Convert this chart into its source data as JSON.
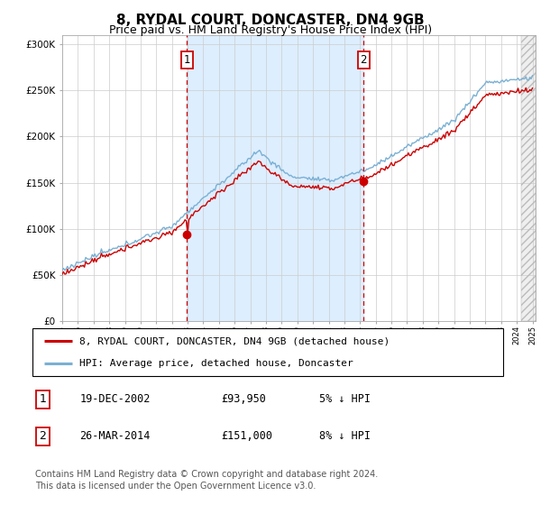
{
  "title": "8, RYDAL COURT, DONCASTER, DN4 9GB",
  "subtitle": "Price paid vs. HM Land Registry's House Price Index (HPI)",
  "ylim": [
    0,
    310000
  ],
  "yticks": [
    0,
    50000,
    100000,
    150000,
    200000,
    250000,
    300000
  ],
  "ytick_labels": [
    "£0",
    "£50K",
    "£100K",
    "£150K",
    "£200K",
    "£250K",
    "£300K"
  ],
  "sale1_year": 2002.96,
  "sale1_price": 93950,
  "sale2_year": 2014.23,
  "sale2_price": 151000,
  "hpi_color": "#7ab0d4",
  "price_color": "#cc0000",
  "shade_color": "#ddeeff",
  "hatch_color": "#cccccc",
  "legend_line1": "8, RYDAL COURT, DONCASTER, DN4 9GB (detached house)",
  "legend_line2": "HPI: Average price, detached house, Doncaster",
  "table_row1": [
    "1",
    "19-DEC-2002",
    "£93,950",
    "5% ↓ HPI"
  ],
  "table_row2": [
    "2",
    "26-MAR-2014",
    "£151,000",
    "8% ↓ HPI"
  ],
  "footer1": "Contains HM Land Registry data © Crown copyright and database right 2024.",
  "footer2": "This data is licensed under the Open Government Licence v3.0.",
  "title_fontsize": 11,
  "subtitle_fontsize": 9,
  "tick_fontsize": 7.5,
  "legend_fontsize": 8,
  "footer_fontsize": 7
}
